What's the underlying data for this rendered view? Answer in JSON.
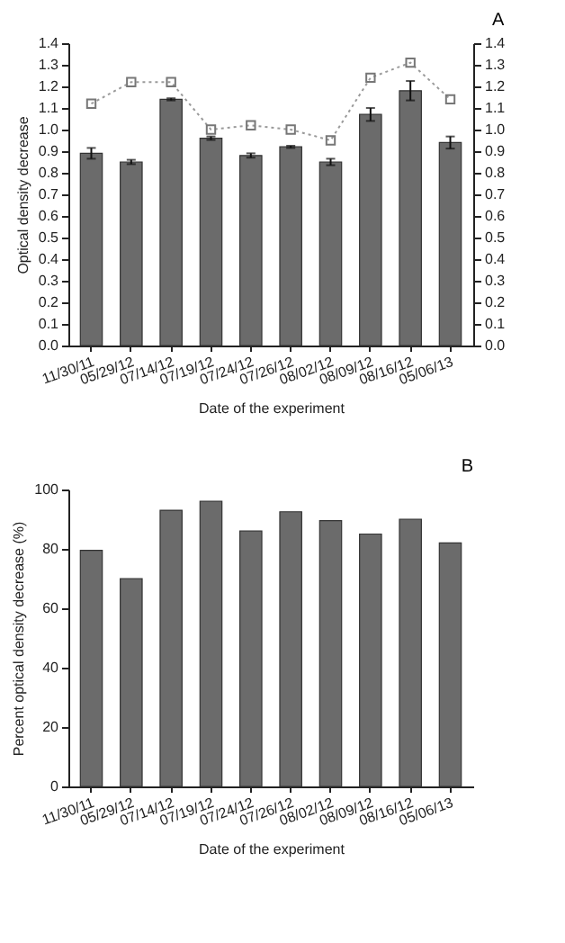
{
  "chart_data": [
    {
      "type": "bar",
      "title": "A",
      "xlabel": "Date of the experiment",
      "ylabel": "Optical density decrease",
      "grid": false,
      "categories": [
        "11/30/11",
        "05/29/12",
        "07/14/12",
        "07/19/12",
        "07/24/12",
        "07/26/12",
        "08/02/12",
        "08/09/12",
        "08/16/12",
        "05/06/13"
      ],
      "series": [
        {
          "color": "#6b6b6b",
          "values": [
            0.89,
            0.85,
            1.14,
            0.96,
            0.88,
            0.92,
            0.85,
            1.07,
            1.18,
            0.94
          ],
          "errors": [
            0.025,
            0.01,
            0.005,
            0.008,
            0.01,
            0.005,
            0.015,
            0.03,
            0.045,
            0.028
          ]
        },
        {
          "type": "line",
          "axis": "y2",
          "color": "#9a9a9a",
          "marker": "square",
          "line_style": "dotted",
          "values": [
            1.12,
            1.22,
            1.22,
            1.0,
            1.02,
            1.0,
            0.95,
            1.24,
            1.31,
            1.14
          ]
        }
      ],
      "ylim": [
        0,
        1.4
      ],
      "yticks": [
        {
          "value": 0,
          "label": "0.0"
        },
        {
          "value": 0.1,
          "label": "0.1"
        },
        {
          "value": 0.2,
          "label": "0.2"
        },
        {
          "value": 0.3,
          "label": "0.3"
        },
        {
          "value": 0.4,
          "label": "0.4"
        },
        {
          "value": 0.5,
          "label": "0.5"
        },
        {
          "value": 0.6,
          "label": "0.6"
        },
        {
          "value": 0.7,
          "label": "0.7"
        },
        {
          "value": 0.8,
          "label": "0.8"
        },
        {
          "value": 0.9,
          "label": "0.9"
        },
        {
          "value": 1,
          "label": "1.0"
        },
        {
          "value": 1.1,
          "label": "1.1"
        },
        {
          "value": 1.2,
          "label": "1.2"
        },
        {
          "value": 1.3,
          "label": "1.3"
        },
        {
          "value": 1.4,
          "label": "1.4"
        }
      ],
      "y2lim": [
        0,
        1.4
      ],
      "y2ticks": [
        {
          "value": 0,
          "label": "0.0"
        },
        {
          "value": 0.1,
          "label": "0.1"
        },
        {
          "value": 0.2,
          "label": "0.2"
        },
        {
          "value": 0.3,
          "label": "0.3"
        },
        {
          "value": 0.4,
          "label": "0.4"
        },
        {
          "value": 0.5,
          "label": "0.5"
        },
        {
          "value": 0.6,
          "label": "0.6"
        },
        {
          "value": 0.7,
          "label": "0.7"
        },
        {
          "value": 0.8,
          "label": "0.8"
        },
        {
          "value": 0.9,
          "label": "0.9"
        },
        {
          "value": 1,
          "label": "1.0"
        },
        {
          "value": 1.1,
          "label": "1.1"
        },
        {
          "value": 1.2,
          "label": "1.2"
        },
        {
          "value": 1.3,
          "label": "1.3"
        },
        {
          "value": 1.4,
          "label": "1.4"
        }
      ]
    },
    {
      "type": "bar",
      "title": "B",
      "xlabel": "Date of the experiment",
      "ylabel": "Percent optical density decrease (%)",
      "grid": false,
      "categories": [
        "11/30/11",
        "05/29/12",
        "07/14/12",
        "07/19/12",
        "07/24/12",
        "07/26/12",
        "08/02/12",
        "08/09/12",
        "08/16/12",
        "05/06/13"
      ],
      "series": [
        {
          "color": "#6b6b6b",
          "values": [
            79.5,
            70,
            93,
            96,
            86,
            92.5,
            89.5,
            85,
            90,
            82
          ]
        }
      ],
      "ylim": [
        0,
        100
      ],
      "yticks": [
        0,
        20,
        40,
        60,
        80,
        100
      ]
    }
  ]
}
